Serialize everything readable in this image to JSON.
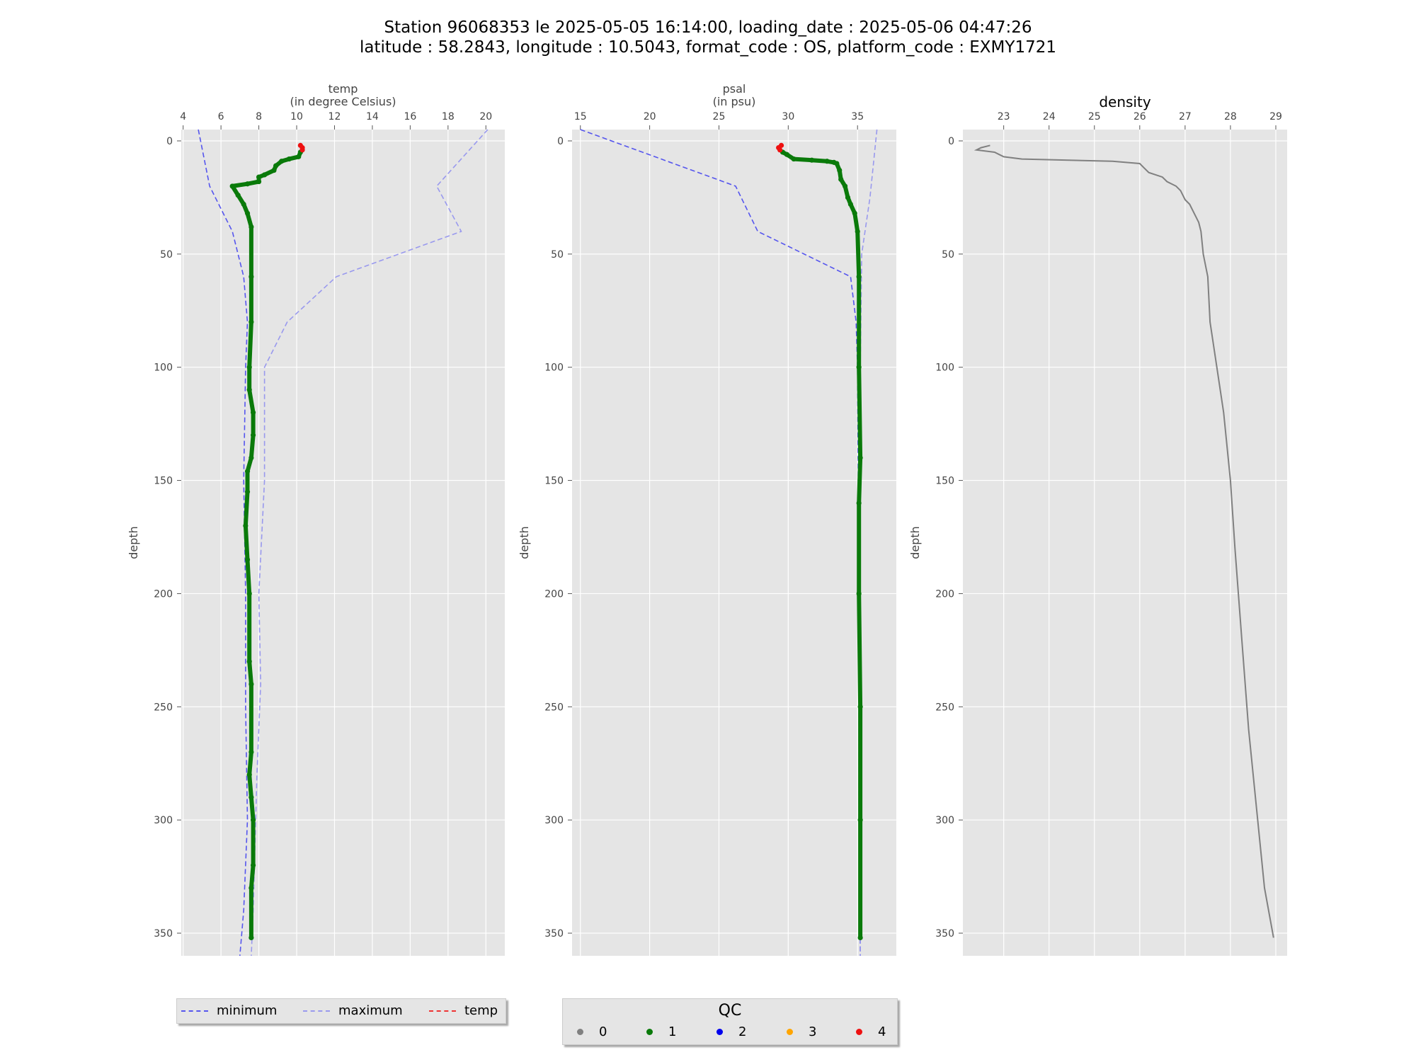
{
  "title": {
    "line1": "Station 96068353 le 2025-05-05 16:14:00, loading_date : 2025-05-06 04:47:26",
    "line2": "latitude : 58.2843, longitude : 10.5043, format_code : OS, platform_code : EXMY1721"
  },
  "colors": {
    "panel_bg": "#e5e5e5",
    "grid": "#ffffff",
    "minimum": "#5555ee",
    "maximum": "#9999ee",
    "qc1": "#0a7a0a",
    "qc4": "#ee1111",
    "density": "#808080"
  },
  "legend_lines": [
    {
      "label": "minimum",
      "color": "#5555ee",
      "style": "dashed"
    },
    {
      "label": "maximum",
      "color": "#9999ee",
      "style": "dashed"
    },
    {
      "label": "temp",
      "color": "#ee3333",
      "style": "dashdot"
    }
  ],
  "legend_qc": {
    "title": "QC",
    "items": [
      {
        "label": "0",
        "color": "#808080"
      },
      {
        "label": "1",
        "color": "#0a7a0a"
      },
      {
        "label": "2",
        "color": "#0000ee"
      },
      {
        "label": "3",
        "color": "#ffa500"
      },
      {
        "label": "4",
        "color": "#ee1111"
      }
    ]
  },
  "chart_data": [
    {
      "type": "line",
      "title": "temp\n(in degree Celsius)",
      "xlabel": "temp\n(in degree Celsius)",
      "ylabel": "depth",
      "xlim": [
        3.9,
        21.0
      ],
      "ylim": [
        360,
        -5
      ],
      "y_inverted": true,
      "xticks": [
        4,
        6,
        8,
        10,
        12,
        14,
        16,
        18,
        20
      ],
      "yticks": [
        0,
        50,
        100,
        150,
        200,
        250,
        300,
        350
      ],
      "grid": true,
      "series": [
        {
          "name": "minimum",
          "style": "dashed",
          "color": "#5555ee",
          "points": [
            [
              4.8,
              -5
            ],
            [
              5.4,
              20
            ],
            [
              6.0,
              30
            ],
            [
              6.6,
              40
            ],
            [
              7.2,
              60
            ],
            [
              7.4,
              80
            ],
            [
              7.3,
              100
            ],
            [
              7.2,
              150
            ],
            [
              7.3,
              200
            ],
            [
              7.3,
              250
            ],
            [
              7.4,
              300
            ],
            [
              7.2,
              340
            ],
            [
              7.0,
              360
            ]
          ]
        },
        {
          "name": "maximum",
          "style": "dashed",
          "color": "#9999ee",
          "points": [
            [
              20.1,
              -5
            ],
            [
              17.4,
              20
            ],
            [
              18.7,
              40
            ],
            [
              12.1,
              60
            ],
            [
              9.5,
              80
            ],
            [
              8.3,
              100
            ],
            [
              8.3,
              150
            ],
            [
              8.0,
              200
            ],
            [
              8.1,
              240
            ],
            [
              7.9,
              280
            ],
            [
              7.7,
              340
            ],
            [
              7.6,
              360
            ]
          ]
        },
        {
          "name": "qc1",
          "qc": 1,
          "color": "#0a7a0a",
          "points": [
            [
              10.2,
              5
            ],
            [
              10.1,
              7
            ],
            [
              9.6,
              8
            ],
            [
              9.2,
              9
            ],
            [
              8.9,
              11
            ],
            [
              8.8,
              13
            ],
            [
              8.3,
              15
            ],
            [
              8.0,
              16
            ],
            [
              8.0,
              18
            ],
            [
              7.4,
              19
            ],
            [
              6.6,
              20
            ],
            [
              6.9,
              24
            ],
            [
              7.2,
              28
            ],
            [
              7.4,
              32
            ],
            [
              7.6,
              38
            ],
            [
              7.6,
              60
            ],
            [
              7.6,
              80
            ],
            [
              7.5,
              100
            ],
            [
              7.5,
              110
            ],
            [
              7.7,
              120
            ],
            [
              7.7,
              130
            ],
            [
              7.6,
              140
            ],
            [
              7.4,
              146
            ],
            [
              7.4,
              155
            ],
            [
              7.3,
              170
            ],
            [
              7.4,
              185
            ],
            [
              7.5,
              200
            ],
            [
              7.5,
              230
            ],
            [
              7.6,
              240
            ],
            [
              7.6,
              270
            ],
            [
              7.5,
              280
            ],
            [
              7.6,
              290
            ],
            [
              7.7,
              300
            ],
            [
              7.7,
              320
            ],
            [
              7.6,
              330
            ],
            [
              7.6,
              352
            ]
          ]
        },
        {
          "name": "qc4",
          "qc": 4,
          "color": "#ee1111",
          "points": [
            [
              10.2,
              2
            ],
            [
              10.3,
              3
            ],
            [
              10.3,
              4
            ]
          ]
        }
      ]
    },
    {
      "type": "line",
      "title": "psal\n(in psu)",
      "xlabel": "psal\n(in psu)",
      "ylabel": "depth",
      "xlim": [
        14.4,
        37.8
      ],
      "ylim": [
        360,
        -5
      ],
      "y_inverted": true,
      "xticks": [
        15,
        20,
        25,
        30,
        35
      ],
      "yticks": [
        0,
        50,
        100,
        150,
        200,
        250,
        300,
        350
      ],
      "grid": true,
      "series": [
        {
          "name": "minimum",
          "style": "dashed",
          "color": "#5555ee",
          "points": [
            [
              15.0,
              -5
            ],
            [
              26.2,
              20
            ],
            [
              27.8,
              40
            ],
            [
              34.5,
              60
            ],
            [
              34.9,
              80
            ],
            [
              35.0,
              100
            ],
            [
              35.1,
              200
            ],
            [
              35.1,
              300
            ],
            [
              35.2,
              360
            ]
          ]
        },
        {
          "name": "maximum",
          "style": "dashed",
          "color": "#9999ee",
          "points": [
            [
              36.4,
              -5
            ],
            [
              35.9,
              25
            ],
            [
              35.3,
              50
            ],
            [
              35.2,
              100
            ],
            [
              35.2,
              200
            ],
            [
              35.2,
              300
            ],
            [
              35.2,
              360
            ]
          ]
        },
        {
          "name": "qc1",
          "qc": 1,
          "color": "#0a7a0a",
          "points": [
            [
              29.6,
              5
            ],
            [
              29.9,
              6
            ],
            [
              30.4,
              8
            ],
            [
              31.7,
              8.5
            ],
            [
              32.8,
              9
            ],
            [
              33.3,
              9.5
            ],
            [
              33.5,
              10
            ],
            [
              33.7,
              13
            ],
            [
              33.8,
              17
            ],
            [
              34.1,
              20
            ],
            [
              34.3,
              25
            ],
            [
              34.5,
              28
            ],
            [
              34.8,
              32
            ],
            [
              35.0,
              40
            ],
            [
              35.1,
              60
            ],
            [
              35.1,
              100
            ],
            [
              35.2,
              140
            ],
            [
              35.1,
              160
            ],
            [
              35.1,
              200
            ],
            [
              35.2,
              250
            ],
            [
              35.2,
              300
            ],
            [
              35.2,
              352
            ]
          ]
        },
        {
          "name": "qc4",
          "qc": 4,
          "color": "#ee1111",
          "points": [
            [
              29.5,
              2
            ],
            [
              29.3,
              3
            ],
            [
              29.4,
              4
            ]
          ]
        }
      ]
    },
    {
      "type": "line",
      "title": "density",
      "xlabel": "",
      "ylabel": "depth",
      "xlim": [
        22.1,
        29.25
      ],
      "ylim": [
        360,
        -5
      ],
      "y_inverted": true,
      "xticks": [
        23,
        24,
        25,
        26,
        27,
        28,
        29
      ],
      "yticks": [
        0,
        50,
        100,
        150,
        200,
        250,
        300,
        350
      ],
      "grid": true,
      "series": [
        {
          "name": "density",
          "color": "#808080",
          "points": [
            [
              22.7,
              2
            ],
            [
              22.5,
              3
            ],
            [
              22.4,
              4
            ],
            [
              22.8,
              5
            ],
            [
              22.9,
              6
            ],
            [
              23.0,
              7
            ],
            [
              23.4,
              8
            ],
            [
              25.4,
              9
            ],
            [
              26.0,
              10
            ],
            [
              26.1,
              12
            ],
            [
              26.2,
              14
            ],
            [
              26.5,
              16
            ],
            [
              26.6,
              18
            ],
            [
              26.8,
              20
            ],
            [
              26.9,
              22
            ],
            [
              27.0,
              26
            ],
            [
              27.1,
              28
            ],
            [
              27.2,
              32
            ],
            [
              27.3,
              36
            ],
            [
              27.35,
              40
            ],
            [
              27.4,
              50
            ],
            [
              27.5,
              60
            ],
            [
              27.55,
              80
            ],
            [
              27.7,
              100
            ],
            [
              27.85,
              120
            ],
            [
              28.0,
              150
            ],
            [
              28.1,
              180
            ],
            [
              28.25,
              220
            ],
            [
              28.4,
              260
            ],
            [
              28.6,
              300
            ],
            [
              28.75,
              330
            ],
            [
              28.95,
              352
            ]
          ]
        }
      ]
    }
  ]
}
